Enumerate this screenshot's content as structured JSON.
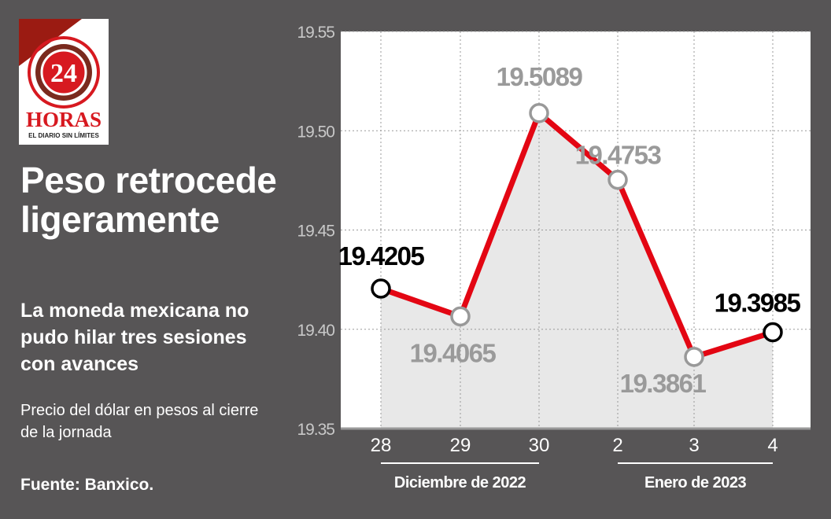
{
  "logo": {
    "number": "24",
    "name": "HORAS",
    "tagline": "EL DIARIO SIN LÍMITES"
  },
  "title": "Peso retrocede ligeramente",
  "subtitle": "La moneda mexicana no pudo hilar tres sesiones con avances",
  "description": "Precio del dólar en pesos al cierre de la jornada",
  "source": "Fuente: Banxico.",
  "colors": {
    "background": "#575556",
    "line": "#e30613",
    "area": "#e8e8e8",
    "label_gray": "#9a9a9a"
  },
  "chart_data": {
    "type": "line",
    "categories": [
      "28",
      "29",
      "30",
      "2",
      "3",
      "4"
    ],
    "values": [
      19.4205,
      19.4065,
      19.5089,
      19.4753,
      19.3861,
      19.3985
    ],
    "labels": [
      "19.4205",
      "19.4065",
      "19.5089",
      "19.4753",
      "19.3861",
      "19.3985"
    ],
    "highlighted": [
      true,
      false,
      false,
      false,
      false,
      true
    ],
    "yticks": [
      "19.55",
      "19.50",
      "19.45",
      "19.40",
      "19.35"
    ],
    "ylim": [
      19.35,
      19.55
    ],
    "groups": [
      {
        "label": "Diciembre de 2022",
        "from": 0,
        "to": 2
      },
      {
        "label": "Enero de 2023",
        "from": 3,
        "to": 5
      }
    ],
    "grid": true
  }
}
